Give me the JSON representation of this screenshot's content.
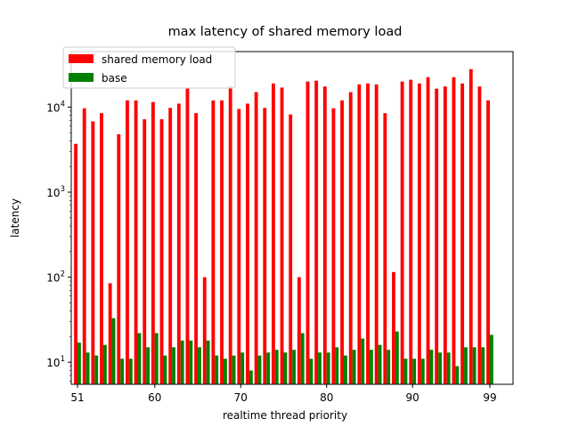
{
  "chart_data": {
    "type": "bar",
    "title": "max latency of shared memory load",
    "xlabel": "realtime thread priority",
    "ylabel": "latency",
    "yscale": "log",
    "ylim": [
      5.5,
      45000
    ],
    "xticks": [
      "51",
      "60",
      "70",
      "80",
      "90",
      "99"
    ],
    "yticks": [
      {
        "value": 10,
        "base": "10",
        "exp": "1"
      },
      {
        "value": 100,
        "base": "10",
        "exp": "2"
      },
      {
        "value": 1000,
        "base": "10",
        "exp": "3"
      },
      {
        "value": 10000,
        "base": "10",
        "exp": "4"
      }
    ],
    "legend_position": "upper-left",
    "grid": false,
    "categories": [
      51,
      52,
      53,
      54,
      55,
      56,
      57,
      58,
      59,
      60,
      61,
      62,
      63,
      64,
      65,
      66,
      67,
      68,
      69,
      70,
      71,
      72,
      73,
      74,
      75,
      76,
      77,
      78,
      79,
      80,
      81,
      82,
      83,
      84,
      85,
      86,
      87,
      88,
      89,
      90,
      91,
      92,
      93,
      94,
      95,
      96,
      97,
      98,
      99
    ],
    "series": [
      {
        "name": "shared memory load",
        "color": "#ff0000",
        "values": [
          3700,
          9700,
          6800,
          8500,
          85,
          4800,
          12000,
          12000,
          7200,
          11500,
          7200,
          9800,
          11000,
          16500,
          8500,
          100,
          12000,
          12000,
          17500,
          9500,
          11000,
          15000,
          9800,
          19000,
          17000,
          8200,
          100,
          20000,
          20500,
          17500,
          9700,
          12000,
          15000,
          18500,
          19000,
          18500,
          8500,
          115,
          20000,
          21000,
          19000,
          22500,
          16500,
          17500,
          22500,
          19000,
          28000,
          17500,
          12000
        ]
      },
      {
        "name": "base",
        "color": "#008000",
        "values": [
          17,
          13,
          12,
          16,
          33,
          11,
          11,
          22,
          15,
          22,
          12,
          15,
          18,
          18,
          15,
          18,
          12,
          11,
          12,
          13,
          8,
          12,
          13,
          14,
          13,
          14,
          22,
          11,
          13,
          13,
          15,
          12,
          14,
          19,
          14,
          16,
          14,
          23,
          11,
          11,
          11,
          14,
          13,
          13,
          9,
          15,
          15,
          15,
          21
        ]
      }
    ]
  }
}
